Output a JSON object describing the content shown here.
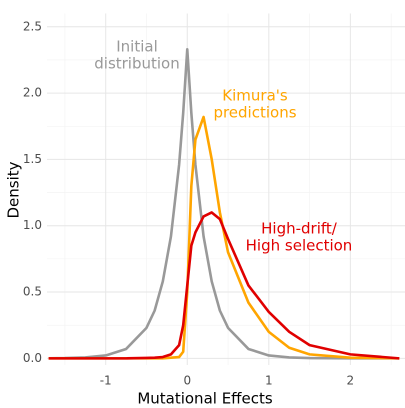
{
  "chart_data": {
    "type": "line",
    "x_label": "Mutational Effects",
    "y_label": "Density",
    "x": [
      -1.7,
      -1.5,
      -1.25,
      -1,
      -0.75,
      -0.5,
      -0.4,
      -0.3,
      -0.2,
      -0.1,
      -0.05,
      0,
      0.05,
      0.1,
      0.2,
      0.3,
      0.4,
      0.5,
      0.75,
      1,
      1.25,
      1.5,
      2,
      2.6
    ],
    "series": [
      {
        "name": "Initial distribution",
        "color": "#999999",
        "values": [
          0.001,
          0.002,
          0.007,
          0.022,
          0.071,
          0.23,
          0.36,
          0.58,
          0.92,
          1.46,
          1.85,
          2.33,
          1.85,
          1.46,
          0.92,
          0.58,
          0.36,
          0.23,
          0.071,
          0.022,
          0.007,
          0.002,
          0,
          0
        ]
      },
      {
        "name": "Kimura's predictions",
        "color": "#ffa500",
        "values": [
          0,
          0,
          0,
          0,
          0,
          0,
          0,
          0,
          0.005,
          0.01,
          0.05,
          0.5,
          1.3,
          1.65,
          1.82,
          1.5,
          1.1,
          0.8,
          0.42,
          0.2,
          0.08,
          0.03,
          0.005,
          0
        ]
      },
      {
        "name": "High-drift/ High selection",
        "color": "#e00000",
        "values": [
          0,
          0,
          0,
          0,
          0,
          0.003,
          0.005,
          0.01,
          0.03,
          0.1,
          0.25,
          0.55,
          0.85,
          0.95,
          1.07,
          1.1,
          1.05,
          0.9,
          0.55,
          0.35,
          0.2,
          0.1,
          0.03,
          0
        ]
      }
    ],
    "annotations": [
      {
        "lines": [
          "Initial",
          "distribution"
        ],
        "color": "#999999"
      },
      {
        "lines": [
          "Kimura's",
          "predictions"
        ],
        "color": "#ffa500"
      },
      {
        "lines": [
          "High-drift/",
          "High selection"
        ],
        "color": "#e00000"
      }
    ],
    "xlim": [
      -1.72,
      2.67
    ],
    "ylim": [
      -0.05,
      2.6
    ],
    "xticks": [
      -1,
      0,
      1,
      2
    ],
    "yticks": [
      {
        "value": 0,
        "label": "0.0"
      },
      0.5,
      {
        "value": 1,
        "label": "1.0"
      },
      1.5,
      {
        "value": 2,
        "label": "2.0"
      },
      2.5
    ],
    "grid": true
  }
}
